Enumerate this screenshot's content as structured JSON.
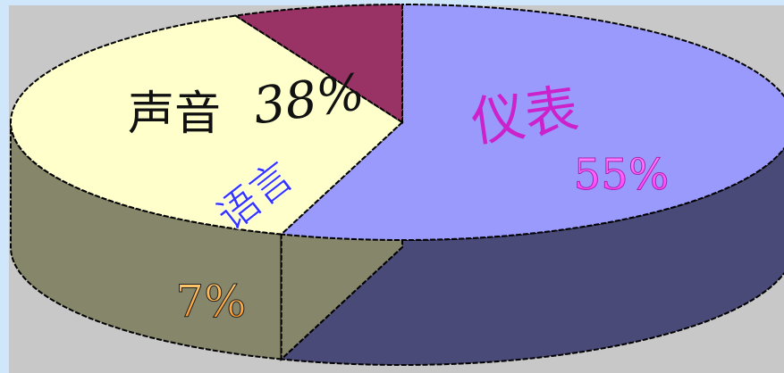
{
  "chart_data": {
    "type": "pie",
    "title": "",
    "slices": [
      {
        "name": "仪表",
        "value": 55,
        "value_label": "55%",
        "color": "#9a9afc",
        "side_color": "#4a4a78",
        "label_color": "#cc22cc",
        "value_color": "#ff66ff"
      },
      {
        "name": "声音",
        "value": 38,
        "value_label": "38%",
        "color": "#ffffcc",
        "side_color": "#86866a",
        "label_color": "#111111",
        "value_color": "#111111"
      },
      {
        "name": "语言",
        "value": 7,
        "value_label": "7%",
        "color": "#993366",
        "side_color": "#4a1a30",
        "label_color": "#3333ff",
        "value_color": "#ffb060"
      }
    ],
    "style": "3d-exploded-pie",
    "legend": "none"
  }
}
